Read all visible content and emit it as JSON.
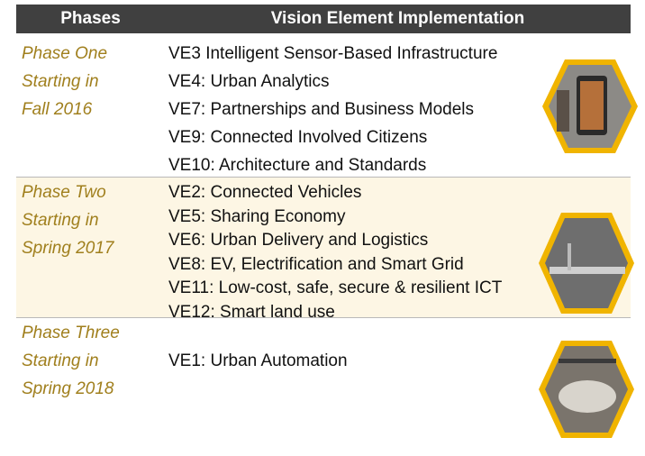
{
  "header": {
    "columns": [
      "Phases",
      "Vision Element Implementation"
    ]
  },
  "rows": [
    {
      "phase": [
        "Phase One",
        "Starting in",
        "Fall 2016"
      ],
      "items": [
        "VE3 Intelligent Sensor-Based Infrastructure",
        "VE4: Urban Analytics",
        "VE7: Partnerships and Business Models",
        "VE9: Connected Involved Citizens",
        "VE10: Architecture and Standards"
      ]
    },
    {
      "phase": [
        "Phase Two",
        "Starting in",
        "Spring 2017"
      ],
      "items": [
        "VE2: Connected Vehicles",
        "VE5: Sharing Economy",
        "VE6: Urban Delivery and Logistics",
        "VE8: EV, Electrification and Smart Grid",
        "VE11: Low-cost, safe, secure & resilient ICT",
        "VE12: Smart land use"
      ]
    },
    {
      "phase": [
        "Phase Three",
        "Starting in",
        "Spring 2018"
      ],
      "items": [
        "VE1: Urban Automation"
      ]
    }
  ]
}
